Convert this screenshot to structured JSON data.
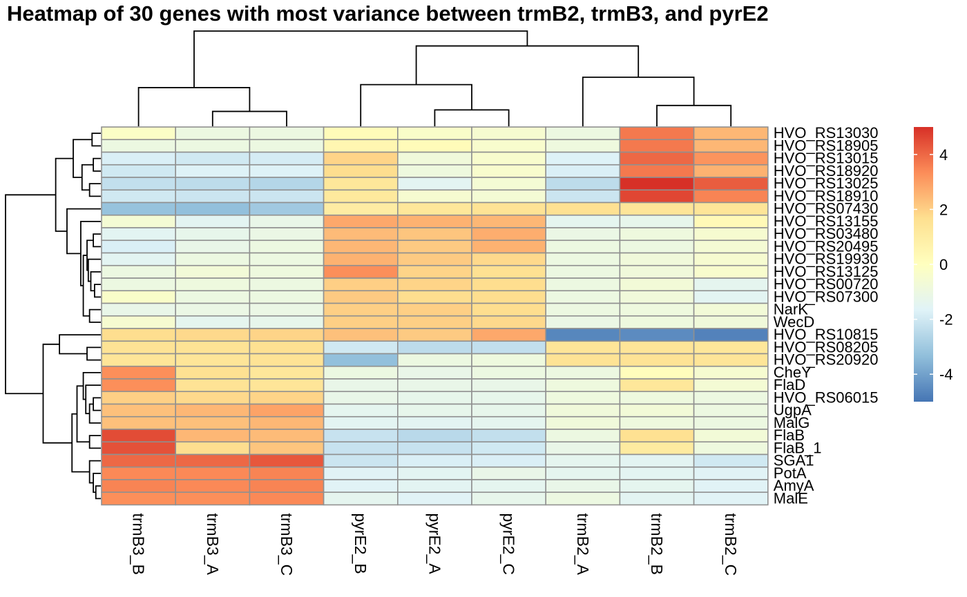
{
  "chart_data": {
    "type": "heatmap",
    "title": "Heatmap of 30 genes with most variance between trmB2, trmB3, and pyrE2",
    "columns": [
      "trmB3_B",
      "trmB3_A",
      "trmB3_C",
      "pyrE2_B",
      "pyrE2_A",
      "pyrE2_C",
      "trmB2_A",
      "trmB2_B",
      "trmB2_C"
    ],
    "rows": [
      "HVO_RS13030",
      "HVO_RS18905",
      "HVO_RS13015",
      "HVO_RS18920",
      "HVO_RS13025",
      "HVO_RS18910",
      "HVO_RS07430",
      "HVO_RS13155",
      "HVO_RS03480",
      "HVO_RS20495",
      "HVO_RS19930",
      "HVO_RS13125",
      "HVO_RS00720",
      "HVO_RS07300",
      "NarK",
      "WecD",
      "HVO_RS10815",
      "HVO_RS08205",
      "HVO_RS20920",
      "CheY",
      "FlaD",
      "HVO_RS06015",
      "UgpA",
      "MalG",
      "FlaB",
      "FlaB_1",
      "SGA1",
      "PotA",
      "AmyA",
      "MalE"
    ],
    "values": [
      [
        -0.2,
        -1.0,
        -1.0,
        0.2,
        -0.3,
        -0.5,
        -1.0,
        3.7,
        2.5
      ],
      [
        -1.0,
        -1.0,
        -1.0,
        0.5,
        0.2,
        -0.4,
        -0.9,
        3.7,
        2.5
      ],
      [
        -1.8,
        -2.0,
        -1.9,
        1.9,
        -0.8,
        -0.4,
        -1.7,
        4.0,
        3.2
      ],
      [
        -2.0,
        -1.7,
        -1.7,
        1.7,
        -0.9,
        -0.4,
        -1.8,
        3.7,
        2.6
      ],
      [
        -2.3,
        -2.4,
        -2.6,
        1.3,
        -1.5,
        -0.6,
        -2.4,
        5.3,
        4.2
      ],
      [
        -2.0,
        -2.1,
        -2.1,
        1.2,
        -0.5,
        -0.6,
        -2.1,
        4.6,
        3.5
      ],
      [
        -3.2,
        -3.3,
        -3.0,
        1.0,
        1.3,
        1.5,
        1.6,
        1.4,
        1.4
      ],
      [
        -0.6,
        -1.5,
        -1.2,
        2.8,
        2.6,
        2.5,
        -1.4,
        -1.3,
        0.3
      ],
      [
        -1.5,
        -1.3,
        -1.1,
        2.4,
        2.2,
        2.7,
        -1.1,
        -0.9,
        -0.5
      ],
      [
        -1.8,
        -1.2,
        -1.0,
        2.5,
        2.1,
        2.6,
        -1.0,
        -1.0,
        -0.6
      ],
      [
        -1.5,
        -1.0,
        -1.0,
        2.6,
        2.1,
        1.8,
        -1.0,
        -0.8,
        -0.5
      ],
      [
        -1.0,
        -0.7,
        -0.9,
        3.3,
        1.9,
        1.6,
        -1.0,
        -0.8,
        -0.4
      ],
      [
        -1.0,
        -0.9,
        -1.0,
        2.0,
        1.9,
        1.7,
        -1.0,
        -0.7,
        -1.4
      ],
      [
        -0.3,
        -1.0,
        -1.0,
        2.1,
        1.7,
        1.7,
        -1.0,
        -0.8,
        -1.5
      ],
      [
        -1.2,
        -1.1,
        -1.1,
        2.0,
        2.0,
        1.7,
        -1.0,
        -0.9,
        -0.7
      ],
      [
        -0.5,
        -1.4,
        -1.3,
        2.0,
        2.0,
        1.8,
        -1.1,
        -0.9,
        -0.8
      ],
      [
        1.7,
        1.8,
        1.9,
        2.3,
        2.1,
        2.8,
        -4.6,
        -4.5,
        -4.7
      ],
      [
        1.5,
        1.5,
        1.6,
        -2.0,
        -2.4,
        -2.3,
        1.4,
        1.4,
        1.3
      ],
      [
        1.4,
        1.4,
        1.5,
        -3.3,
        -1.0,
        -0.9,
        1.5,
        1.5,
        1.4
      ],
      [
        3.3,
        1.6,
        1.3,
        -1.0,
        -1.2,
        -1.0,
        -1.0,
        0.1,
        -0.5
      ],
      [
        3.3,
        1.5,
        1.4,
        -1.2,
        -1.2,
        -1.2,
        -0.9,
        1.3,
        -0.6
      ],
      [
        2.0,
        1.8,
        1.9,
        -1.2,
        -1.3,
        -1.3,
        -0.9,
        -0.9,
        -1.0
      ],
      [
        2.3,
        2.5,
        2.9,
        -1.4,
        -1.3,
        -1.3,
        -0.8,
        -0.7,
        -1.0
      ],
      [
        2.3,
        2.3,
        2.5,
        -1.5,
        -1.5,
        -1.4,
        -0.8,
        -0.9,
        -1.0
      ],
      [
        4.5,
        2.5,
        2.4,
        -2.2,
        -2.5,
        -2.3,
        -1.0,
        1.6,
        -0.7
      ],
      [
        4.4,
        1.7,
        2.2,
        -2.2,
        -2.2,
        -2.0,
        -1.2,
        1.1,
        -0.9
      ],
      [
        4.0,
        4.0,
        4.3,
        -2.1,
        -1.8,
        -1.8,
        -1.4,
        -1.5,
        -2.0
      ],
      [
        3.4,
        3.4,
        3.5,
        -1.6,
        -1.5,
        -1.2,
        -1.4,
        -1.5,
        -1.6
      ],
      [
        3.5,
        3.4,
        3.5,
        -1.6,
        -1.5,
        -1.4,
        -1.2,
        -1.4,
        -1.6
      ],
      [
        3.3,
        3.3,
        3.4,
        -1.4,
        -1.6,
        -1.3,
        -1.0,
        -1.5,
        -1.6
      ]
    ],
    "color_scale": {
      "min": -5,
      "max": 5,
      "stops": [
        "#4575B4",
        "#91BFDB",
        "#E0F3F8",
        "#FFFFBF",
        "#FEE090",
        "#FC8D59",
        "#D73027"
      ],
      "ticks": [
        4,
        2,
        0,
        -2,
        -4
      ]
    },
    "cell_border_color": "#909090",
    "col_dendrogram": [
      [
        1,
        2,
        0.5
      ],
      [
        4,
        5,
        0.55
      ],
      [
        7,
        8,
        0.7
      ],
      [
        0,
        9,
        1.3
      ],
      [
        3,
        10,
        1.4
      ],
      [
        6,
        11,
        1.65
      ],
      [
        13,
        14,
        2.7
      ],
      [
        12,
        15,
        3.2
      ]
    ],
    "row_dendrogram": [
      [
        0,
        1,
        0.35
      ],
      [
        2,
        3,
        0.3
      ],
      [
        4,
        5,
        0.45
      ],
      [
        31,
        32,
        0.75
      ],
      [
        30,
        33,
        1.1
      ],
      [
        12,
        13,
        0.25
      ],
      [
        35,
        11,
        0.4
      ],
      [
        36,
        10,
        0.5
      ],
      [
        9,
        8,
        0.3
      ],
      [
        37,
        38,
        0.55
      ],
      [
        14,
        15,
        0.45
      ],
      [
        39,
        40,
        0.7
      ],
      [
        41,
        7,
        0.8
      ],
      [
        42,
        6,
        1.35
      ],
      [
        34,
        43,
        1.8
      ],
      [
        17,
        18,
        0.55
      ],
      [
        16,
        45,
        1.65
      ],
      [
        21,
        22,
        0.3
      ],
      [
        47,
        23,
        0.45
      ],
      [
        20,
        48,
        0.6
      ],
      [
        19,
        49,
        0.7
      ],
      [
        24,
        25,
        0.45
      ],
      [
        50,
        51,
        0.95
      ],
      [
        28,
        29,
        0.2
      ],
      [
        27,
        53,
        0.3
      ],
      [
        26,
        54,
        0.45
      ],
      [
        52,
        55,
        1.15
      ],
      [
        46,
        56,
        2.3
      ],
      [
        44,
        57,
        3.8
      ]
    ]
  }
}
